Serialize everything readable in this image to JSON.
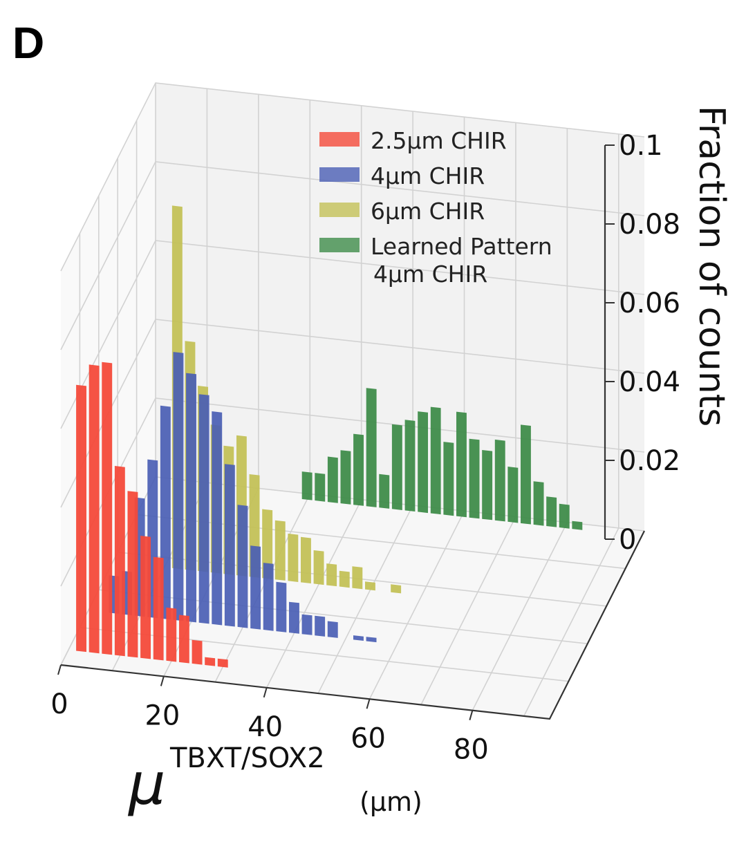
{
  "panel_label": "D",
  "chart_data": {
    "type": "bar",
    "projection": "3d",
    "xlabel": {
      "symbol": "μ",
      "superscript": "TBXT/SOX2",
      "unit": "(μm)"
    },
    "zlabel": "Fraction of counts",
    "xticks": [
      "0",
      "20",
      "40",
      "60",
      "80"
    ],
    "zticks": [
      "0",
      "0.02",
      "0.04",
      "0.06",
      "0.08",
      "0.1"
    ],
    "xlim": [
      0,
      95
    ],
    "zlim": [
      0,
      0.1
    ],
    "legend_position": "upper-center",
    "series": [
      {
        "name": "2.5μm CHIR",
        "color": "#f44a3a",
        "x": [
          2.5,
          5,
          7.5,
          10,
          12.5,
          15,
          17.5,
          20,
          22.5,
          25,
          27.5,
          30
        ],
        "values": [
          0.0675,
          0.073,
          0.074,
          0.048,
          0.042,
          0.031,
          0.026,
          0.0135,
          0.012,
          0.006,
          0.002,
          0.002
        ]
      },
      {
        "name": "4μm CHIR",
        "color": "#4a5eb4",
        "x": [
          5,
          7.5,
          10,
          12.5,
          15,
          17.5,
          20,
          22.5,
          25,
          27.5,
          30,
          32.5,
          35,
          37.5,
          40,
          42.5,
          45,
          47.5,
          50,
          52.5,
          55
        ],
        "values": [
          0.0095,
          0.011,
          0.03,
          0.04,
          0.054,
          0.068,
          0.063,
          0.058,
          0.054,
          0.041,
          0.031,
          0.021,
          0.017,
          0.0125,
          0.0078,
          0.005,
          0.005,
          0.004,
          0,
          0.0011,
          0.0011
        ]
      },
      {
        "name": "6μm CHIR",
        "color": "#c3c157",
        "x": [
          12.5,
          15,
          17.5,
          20,
          22.5,
          25,
          27.5,
          30,
          32.5,
          35,
          37.5,
          40,
          42.5,
          45,
          47.5,
          50,
          52.5,
          55
        ],
        "values": [
          0.092,
          0.058,
          0.047,
          0.0375,
          0.0325,
          0.0355,
          0.026,
          0.0175,
          0.015,
          0.012,
          0.0115,
          0.0085,
          0.0055,
          0.004,
          0.0055,
          0.002,
          0,
          0.002
        ]
      },
      {
        "name": "Learned Pattern\n4μm CHIR",
        "color": "#3f8c4a",
        "x": [
          30,
          32.5,
          35,
          37.5,
          40,
          42.5,
          45,
          47.5,
          50,
          52.5,
          55,
          57.5,
          60,
          62.5,
          65,
          67.5,
          70,
          72.5,
          75,
          77.5,
          80,
          82.5,
          85
        ],
        "values": [
          0.007,
          0.007,
          0.0115,
          0.0135,
          0.018,
          0.03,
          0.0085,
          0.0215,
          0.023,
          0.0255,
          0.027,
          0.0185,
          0.0265,
          0.02,
          0.0175,
          0.0205,
          0.014,
          0.025,
          0.011,
          0.0075,
          0.006,
          0.002,
          0
        ]
      }
    ]
  }
}
